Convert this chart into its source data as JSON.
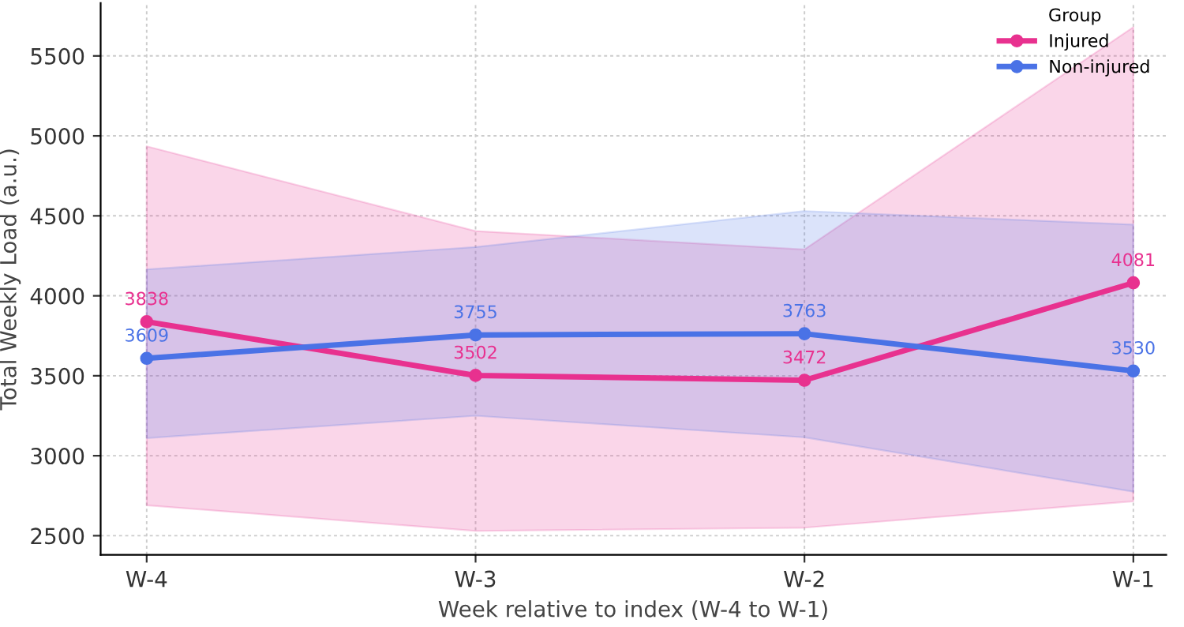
{
  "chart_data": {
    "type": "line",
    "xlabel": "Week relative to index (W-4 to W-1)",
    "ylabel": "Total Weekly Load (a.u.)",
    "legend_title": "Group",
    "categories": [
      "W-4",
      "W-3",
      "W-2",
      "W-1"
    ],
    "series": [
      {
        "name": "Injured",
        "color": "#e8318f",
        "values": [
          3838,
          3502,
          3472,
          4081
        ],
        "lower": [
          2690,
          2530,
          2550,
          2715
        ],
        "upper": [
          4935,
          4405,
          4290,
          5680
        ]
      },
      {
        "name": "Non-injured",
        "color": "#4a72e6",
        "values": [
          3609,
          3755,
          3763,
          3530
        ],
        "lower": [
          3110,
          3250,
          3115,
          2775
        ],
        "upper": [
          4165,
          4305,
          4530,
          4445
        ]
      }
    ],
    "ylim": [
      2380,
      5830
    ],
    "yticks": [
      2500,
      3000,
      3500,
      4000,
      4500,
      5000,
      5500
    ],
    "grid": true,
    "legend": "top right",
    "marker": "circle",
    "line_style": "solid",
    "data_labels": true
  }
}
